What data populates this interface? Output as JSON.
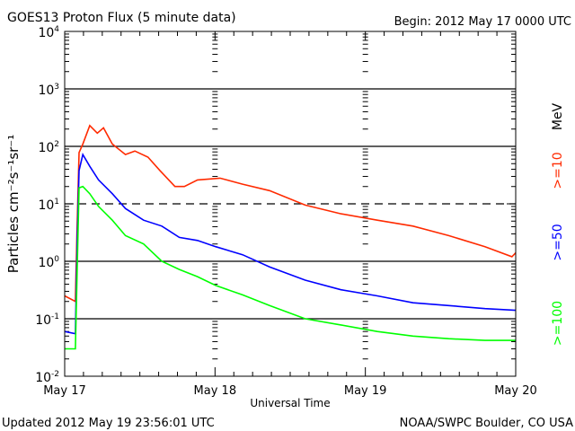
{
  "chart_data": {
    "type": "line",
    "title": "GOES13 Proton Flux (5 minute data)",
    "begin_label": "Begin: 2012 May 17 0000 UTC",
    "xlabel": "Universal Time",
    "ylabel": "Particles cm⁻²s⁻¹sr⁻¹",
    "x_unit": "hours since May 17 0000 UTC",
    "x_ticks": [
      {
        "hours": 0,
        "label": "May 17"
      },
      {
        "hours": 24,
        "label": "May 18"
      },
      {
        "hours": 48,
        "label": "May 19"
      },
      {
        "hours": 72,
        "label": "May 20"
      }
    ],
    "xlim": [
      0,
      72
    ],
    "y_scale": "log",
    "ylim": [
      0.01,
      10000
    ],
    "y_tick_labels": [
      {
        "base": "10",
        "exp": "4"
      },
      {
        "base": "10",
        "exp": "3"
      },
      {
        "base": "10",
        "exp": "2"
      },
      {
        "base": "10",
        "exp": "1"
      },
      {
        "base": "10",
        "exp": "0"
      },
      {
        "base": "10",
        "exp": "-1"
      },
      {
        "base": "10",
        "exp": "-2"
      }
    ],
    "reference_lines": [
      {
        "value": 1000,
        "style": "solid"
      },
      {
        "value": 100,
        "style": "solid"
      },
      {
        "value": 10,
        "style": "dashed"
      },
      {
        "value": 1,
        "style": "solid"
      },
      {
        "value": 0.1,
        "style": "solid"
      }
    ],
    "legend_unit": "MeV",
    "legend_placement": "right",
    "series": [
      {
        "name": ">=10",
        "color": "#ff2a00",
        "x": [
          0,
          1.7,
          2.0,
          2.3,
          2.9,
          4.0,
          5.2,
          6.2,
          7.6,
          9.7,
          11.2,
          13.3,
          15.2,
          17.6,
          19.1,
          21.2,
          24.8,
          28.4,
          32.7,
          38.4,
          44.1,
          49.9,
          55.6,
          61.3,
          67.1,
          71.4,
          72
        ],
        "y": [
          0.25,
          0.2,
          4.4,
          78,
          110,
          230,
          170,
          210,
          110,
          72,
          83,
          65,
          38,
          20,
          20,
          26,
          28,
          22,
          17,
          9.5,
          6.7,
          5.2,
          4.1,
          2.8,
          1.8,
          1.2,
          1.4
        ]
      },
      {
        "name": ">=50",
        "color": "#0000ff",
        "x": [
          0,
          1.7,
          2.0,
          2.3,
          2.9,
          4.0,
          5.4,
          7.6,
          9.7,
          12.6,
          15.5,
          18.3,
          21.2,
          24.1,
          28.4,
          32.7,
          38.4,
          44.1,
          49.9,
          55.6,
          61.3,
          67.1,
          72
        ],
        "y": [
          0.06,
          0.055,
          2.1,
          38,
          72,
          45,
          26,
          15,
          8.3,
          5.2,
          4.1,
          2.6,
          2.3,
          1.8,
          1.3,
          0.8,
          0.47,
          0.32,
          0.25,
          0.19,
          0.17,
          0.15,
          0.14
        ]
      },
      {
        "name": ">=100",
        "color": "#00ff00",
        "x": [
          0,
          1.7,
          2.0,
          2.3,
          2.9,
          4.0,
          5.4,
          7.6,
          9.7,
          12.6,
          15.5,
          18.3,
          21.2,
          24.1,
          28.4,
          32.7,
          38.4,
          44.1,
          49.9,
          55.6,
          61.3,
          67.1,
          72
        ],
        "y": [
          0.03,
          0.03,
          0.72,
          19,
          20,
          15,
          9,
          5.2,
          2.8,
          2.0,
          1.0,
          0.72,
          0.54,
          0.38,
          0.26,
          0.17,
          0.1,
          0.078,
          0.06,
          0.05,
          0.045,
          0.042,
          0.042
        ]
      }
    ]
  },
  "footer": {
    "updated": "Updated 2012 May 19 23:56:01 UTC",
    "source": "NOAA/SWPC Boulder, CO USA"
  }
}
